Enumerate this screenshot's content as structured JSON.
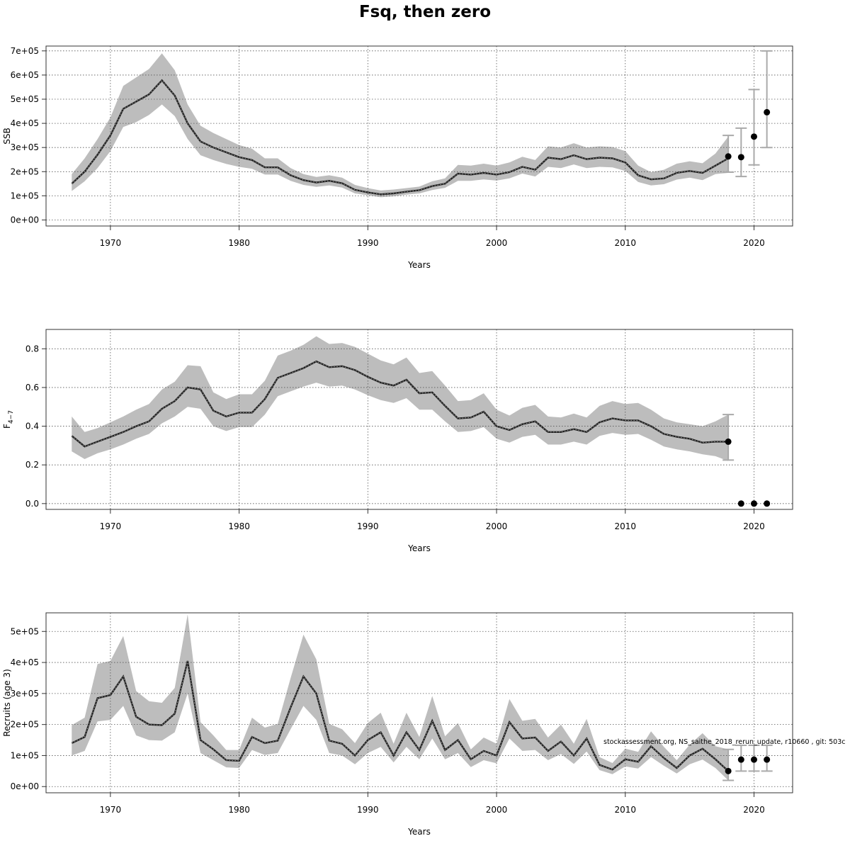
{
  "title": "Fsq, then zero",
  "footnote": "stockassessment.org, NS_saithe_2018_rerun_update, r10660 , git: 503c",
  "chart_data": [
    {
      "type": "line",
      "ylabel": "SSB",
      "xlabel": "Years",
      "xlim": [
        1965,
        2023
      ],
      "ylim": [
        -25000,
        720000
      ],
      "xticks": [
        1970,
        1980,
        1990,
        2000,
        2010,
        2020
      ],
      "xtick_labels": [
        "1970",
        "1980",
        "1990",
        "2000",
        "2010",
        "2020"
      ],
      "yticks": [
        0,
        100000,
        200000,
        300000,
        400000,
        500000,
        600000,
        700000
      ],
      "ytick_labels": [
        "0e+00",
        "1e+05",
        "2e+05",
        "3e+05",
        "4e+05",
        "5e+05",
        "6e+05",
        "7e+05"
      ],
      "grid": true,
      "years": [
        1967,
        1968,
        1969,
        1970,
        1971,
        1972,
        1973,
        1974,
        1975,
        1976,
        1977,
        1978,
        1979,
        1980,
        1981,
        1982,
        1983,
        1984,
        1985,
        1986,
        1987,
        1988,
        1989,
        1990,
        1991,
        1992,
        1993,
        1994,
        1995,
        1996,
        1997,
        1998,
        1999,
        2000,
        2001,
        2002,
        2003,
        2004,
        2005,
        2006,
        2007,
        2008,
        2009,
        2010,
        2011,
        2012,
        2013,
        2014,
        2015,
        2016,
        2017,
        2018
      ],
      "estimate": [
        150000,
        200000,
        270000,
        350000,
        460000,
        490000,
        520000,
        578000,
        515000,
        400000,
        325000,
        300000,
        280000,
        260000,
        248000,
        218000,
        218000,
        185000,
        165000,
        155000,
        162000,
        152000,
        125000,
        114000,
        106000,
        110000,
        117000,
        123000,
        140000,
        150000,
        192000,
        188000,
        195000,
        188000,
        198000,
        220000,
        208000,
        258000,
        252000,
        268000,
        252000,
        258000,
        255000,
        238000,
        185000,
        168000,
        172000,
        195000,
        203000,
        195000,
        225000,
        255000
      ],
      "lower": [
        120000,
        160000,
        215000,
        285000,
        385000,
        405000,
        435000,
        478000,
        430000,
        335000,
        268000,
        248000,
        232000,
        220000,
        212000,
        188000,
        188000,
        162000,
        145000,
        137000,
        143000,
        134000,
        110000,
        102000,
        94000,
        98000,
        105000,
        110000,
        124000,
        133000,
        162000,
        162000,
        168000,
        163000,
        172000,
        192000,
        180000,
        220000,
        215000,
        230000,
        215000,
        220000,
        218000,
        203000,
        157000,
        143000,
        148000,
        167000,
        175000,
        165000,
        190000,
        195000
      ],
      "upper": [
        190000,
        255000,
        335000,
        425000,
        555000,
        590000,
        625000,
        690000,
        620000,
        478000,
        390000,
        360000,
        335000,
        310000,
        295000,
        255000,
        255000,
        215000,
        190000,
        178000,
        185000,
        175000,
        145000,
        132000,
        122000,
        126000,
        132000,
        138000,
        160000,
        172000,
        228000,
        225000,
        233000,
        225000,
        238000,
        262000,
        248000,
        305000,
        300000,
        318000,
        300000,
        305000,
        302000,
        285000,
        225000,
        198000,
        208000,
        233000,
        243000,
        235000,
        275000,
        345000
      ],
      "forecast": [
        {
          "year": 2018,
          "median": 263000,
          "low": 198000,
          "high": 350000
        },
        {
          "year": 2019,
          "median": 260000,
          "low": 180000,
          "high": 380000
        },
        {
          "year": 2020,
          "median": 345000,
          "low": 228000,
          "high": 540000
        },
        {
          "year": 2021,
          "median": 446000,
          "low": 300000,
          "high": 700000
        }
      ]
    },
    {
      "type": "line",
      "ylabel": "F",
      "ylabel_sub": "4−7",
      "xlabel": "Years",
      "xlim": [
        1965,
        2023
      ],
      "ylim": [
        -0.03,
        0.9
      ],
      "xticks": [
        1970,
        1980,
        1990,
        2000,
        2010,
        2020
      ],
      "xtick_labels": [
        "1970",
        "1980",
        "1990",
        "2000",
        "2010",
        "2020"
      ],
      "yticks": [
        0,
        0.2,
        0.4,
        0.6,
        0.8
      ],
      "ytick_labels": [
        "0.0",
        "0.2",
        "0.4",
        "0.6",
        "0.8"
      ],
      "grid": true,
      "years": [
        1967,
        1968,
        1969,
        1970,
        1971,
        1972,
        1973,
        1974,
        1975,
        1976,
        1977,
        1978,
        1979,
        1980,
        1981,
        1982,
        1983,
        1984,
        1985,
        1986,
        1987,
        1988,
        1989,
        1990,
        1991,
        1992,
        1993,
        1994,
        1995,
        1996,
        1997,
        1998,
        1999,
        2000,
        2001,
        2002,
        2003,
        2004,
        2005,
        2006,
        2007,
        2008,
        2009,
        2010,
        2011,
        2012,
        2013,
        2014,
        2015,
        2016,
        2017,
        2018
      ],
      "estimate": [
        0.35,
        0.295,
        0.32,
        0.345,
        0.37,
        0.4,
        0.425,
        0.49,
        0.53,
        0.6,
        0.59,
        0.48,
        0.45,
        0.47,
        0.47,
        0.54,
        0.65,
        0.675,
        0.7,
        0.735,
        0.705,
        0.71,
        0.69,
        0.655,
        0.625,
        0.61,
        0.64,
        0.57,
        0.575,
        0.505,
        0.44,
        0.445,
        0.475,
        0.4,
        0.38,
        0.41,
        0.425,
        0.37,
        0.37,
        0.385,
        0.37,
        0.42,
        0.44,
        0.43,
        0.43,
        0.4,
        0.36,
        0.345,
        0.335,
        0.315,
        0.32,
        0.32
      ],
      "lower": [
        0.27,
        0.23,
        0.26,
        0.28,
        0.305,
        0.335,
        0.36,
        0.415,
        0.45,
        0.5,
        0.49,
        0.4,
        0.375,
        0.395,
        0.395,
        0.46,
        0.555,
        0.58,
        0.605,
        0.625,
        0.605,
        0.61,
        0.59,
        0.56,
        0.535,
        0.52,
        0.545,
        0.485,
        0.485,
        0.425,
        0.37,
        0.375,
        0.395,
        0.335,
        0.315,
        0.345,
        0.355,
        0.305,
        0.305,
        0.32,
        0.305,
        0.35,
        0.365,
        0.355,
        0.36,
        0.33,
        0.295,
        0.28,
        0.27,
        0.255,
        0.245,
        0.22
      ],
      "upper": [
        0.45,
        0.37,
        0.39,
        0.42,
        0.45,
        0.485,
        0.515,
        0.59,
        0.63,
        0.715,
        0.71,
        0.575,
        0.54,
        0.565,
        0.565,
        0.635,
        0.765,
        0.79,
        0.82,
        0.865,
        0.825,
        0.83,
        0.81,
        0.775,
        0.74,
        0.72,
        0.755,
        0.675,
        0.685,
        0.61,
        0.53,
        0.535,
        0.57,
        0.485,
        0.455,
        0.495,
        0.51,
        0.45,
        0.445,
        0.465,
        0.445,
        0.505,
        0.53,
        0.515,
        0.52,
        0.485,
        0.44,
        0.42,
        0.41,
        0.4,
        0.425,
        0.46
      ],
      "forecast": [
        {
          "year": 2018,
          "median": 0.32,
          "low": 0.225,
          "high": 0.46
        },
        {
          "year": 2019,
          "median": 0.0,
          "low": 0.0,
          "high": 0.0
        },
        {
          "year": 2020,
          "median": 0.0,
          "low": 0.0,
          "high": 0.0
        },
        {
          "year": 2021,
          "median": 0.0,
          "low": 0.0,
          "high": 0.0
        }
      ]
    },
    {
      "type": "line",
      "ylabel": "Recruits (age 3)",
      "xlabel": "Years",
      "xlim": [
        1965,
        2023
      ],
      "ylim": [
        -20000,
        560000
      ],
      "xticks": [
        1970,
        1980,
        1990,
        2000,
        2010,
        2020
      ],
      "xtick_labels": [
        "1970",
        "1980",
        "1990",
        "2000",
        "2010",
        "2020"
      ],
      "yticks": [
        0,
        100000,
        200000,
        300000,
        400000,
        500000
      ],
      "ytick_labels": [
        "0e+00",
        "1e+05",
        "2e+05",
        "3e+05",
        "4e+05",
        "5e+05"
      ],
      "grid": true,
      "years": [
        1967,
        1968,
        1969,
        1970,
        1971,
        1972,
        1973,
        1974,
        1975,
        1976,
        1977,
        1978,
        1979,
        1980,
        1981,
        1982,
        1983,
        1984,
        1985,
        1986,
        1987,
        1988,
        1989,
        1990,
        1991,
        1992,
        1993,
        1994,
        1995,
        1996,
        1997,
        1998,
        1999,
        2000,
        2001,
        2002,
        2003,
        2004,
        2005,
        2006,
        2007,
        2008,
        2009,
        2010,
        2011,
        2012,
        2013,
        2014,
        2015,
        2016,
        2017,
        2018
      ],
      "estimate": [
        140000,
        160000,
        285000,
        295000,
        355000,
        225000,
        200000,
        198000,
        235000,
        405000,
        150000,
        120000,
        85000,
        83000,
        160000,
        140000,
        148000,
        255000,
        355000,
        300000,
        148000,
        138000,
        100000,
        150000,
        175000,
        100000,
        175000,
        118000,
        212000,
        118000,
        150000,
        88000,
        115000,
        100000,
        208000,
        155000,
        158000,
        115000,
        145000,
        100000,
        155000,
        70000,
        55000,
        88000,
        80000,
        130000,
        92000,
        60000,
        100000,
        122000,
        88000,
        50000
      ],
      "lower": [
        100000,
        115000,
        210000,
        215000,
        260000,
        165000,
        150000,
        148000,
        175000,
        300000,
        108000,
        85000,
        62000,
        60000,
        118000,
        102000,
        108000,
        185000,
        260000,
        215000,
        108000,
        100000,
        72000,
        108000,
        128000,
        78000,
        128000,
        88000,
        155000,
        88000,
        108000,
        63000,
        85000,
        75000,
        155000,
        115000,
        118000,
        85000,
        105000,
        73000,
        113000,
        53000,
        40000,
        65000,
        58000,
        95000,
        67000,
        42000,
        72000,
        87000,
        60000,
        20000
      ],
      "upper": [
        198000,
        222000,
        395000,
        405000,
        485000,
        308000,
        275000,
        270000,
        318000,
        555000,
        208000,
        165000,
        118000,
        118000,
        222000,
        190000,
        202000,
        350000,
        490000,
        410000,
        202000,
        185000,
        140000,
        205000,
        238000,
        138000,
        238000,
        160000,
        292000,
        162000,
        205000,
        120000,
        158000,
        138000,
        282000,
        212000,
        218000,
        158000,
        200000,
        138000,
        218000,
        95000,
        76000,
        122000,
        112000,
        178000,
        128000,
        85000,
        135000,
        172000,
        130000,
        120000
      ],
      "forecast": [
        {
          "year": 2018,
          "median": 50000,
          "low": 20000,
          "high": 120000
        },
        {
          "year": 2019,
          "median": 87000,
          "low": 50000,
          "high": 133000
        },
        {
          "year": 2020,
          "median": 87000,
          "low": 50000,
          "high": 133000
        },
        {
          "year": 2021,
          "median": 87000,
          "low": 50000,
          "high": 133000
        }
      ]
    }
  ]
}
